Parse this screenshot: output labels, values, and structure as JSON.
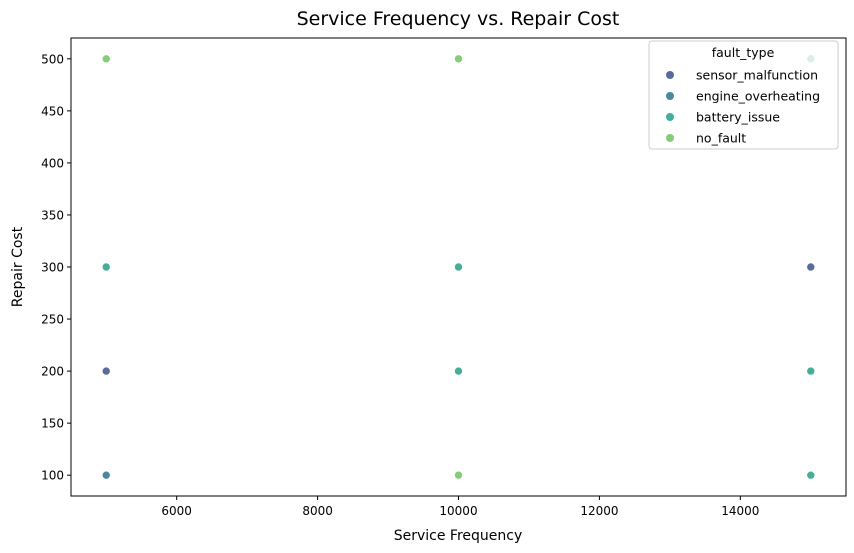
{
  "chart_data": {
    "type": "scatter",
    "title": "Service Frequency vs. Repair Cost",
    "xlabel": "Service Frequency",
    "ylabel": "Repair Cost",
    "xlim": [
      4500,
      15500
    ],
    "ylim": [
      80,
      520
    ],
    "x_ticks": [
      6000,
      8000,
      10000,
      12000,
      14000
    ],
    "y_ticks": [
      100,
      150,
      200,
      250,
      300,
      350,
      400,
      450,
      500
    ],
    "grid": false,
    "legend": {
      "title": "fault_type",
      "placement": "top-right"
    },
    "series": [
      {
        "name": "sensor_malfunction",
        "color": "#3b528b",
        "points": [
          [
            5000,
            200
          ],
          [
            15000,
            300
          ]
        ]
      },
      {
        "name": "engine_overheating",
        "color": "#2c728e",
        "points": [
          [
            5000,
            100
          ]
        ]
      },
      {
        "name": "battery_issue",
        "color": "#21a08a",
        "points": [
          [
            5000,
            300
          ],
          [
            10000,
            300
          ],
          [
            10000,
            200
          ],
          [
            15000,
            200
          ],
          [
            15000,
            100
          ],
          [
            15000,
            500
          ]
        ]
      },
      {
        "name": "no_fault",
        "color": "#6cc45e",
        "points": [
          [
            5000,
            500
          ],
          [
            10000,
            500
          ],
          [
            10000,
            100
          ]
        ]
      }
    ]
  }
}
